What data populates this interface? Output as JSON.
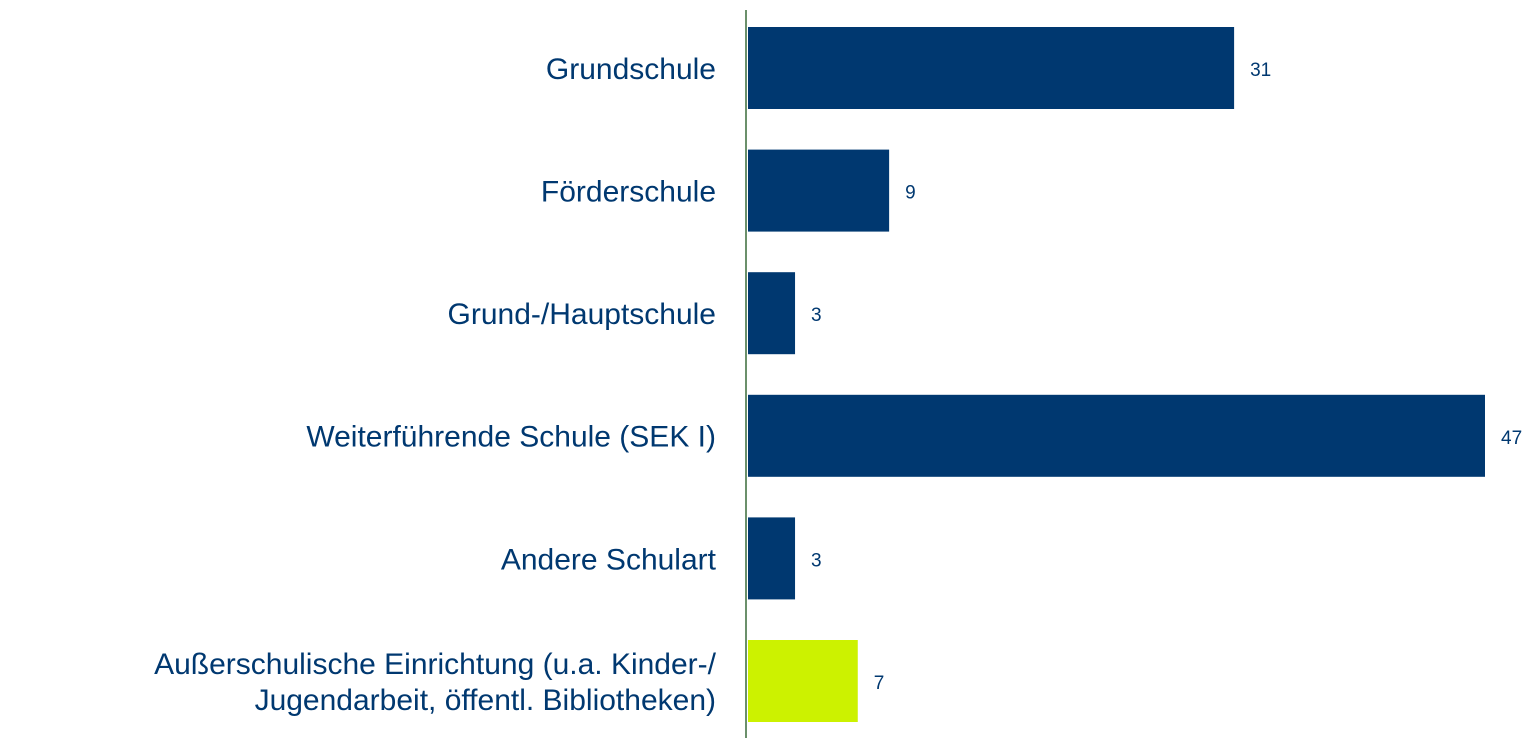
{
  "chart_data": {
    "type": "barh",
    "categories": [
      "Grundschule",
      "Förderschule",
      "Grund-/Hauptschule",
      "Weiterführende Schule (SEK I)",
      "Andere Schulart",
      "Außerschulische Einrichtung (u.a. Kinder-/\nJugendarbeit, öffentl. Bibliotheken)"
    ],
    "values": [
      31,
      9,
      3,
      47,
      3,
      7
    ],
    "colors": [
      "#003870",
      "#003870",
      "#003870",
      "#003870",
      "#003870",
      "#ccf200"
    ]
  }
}
